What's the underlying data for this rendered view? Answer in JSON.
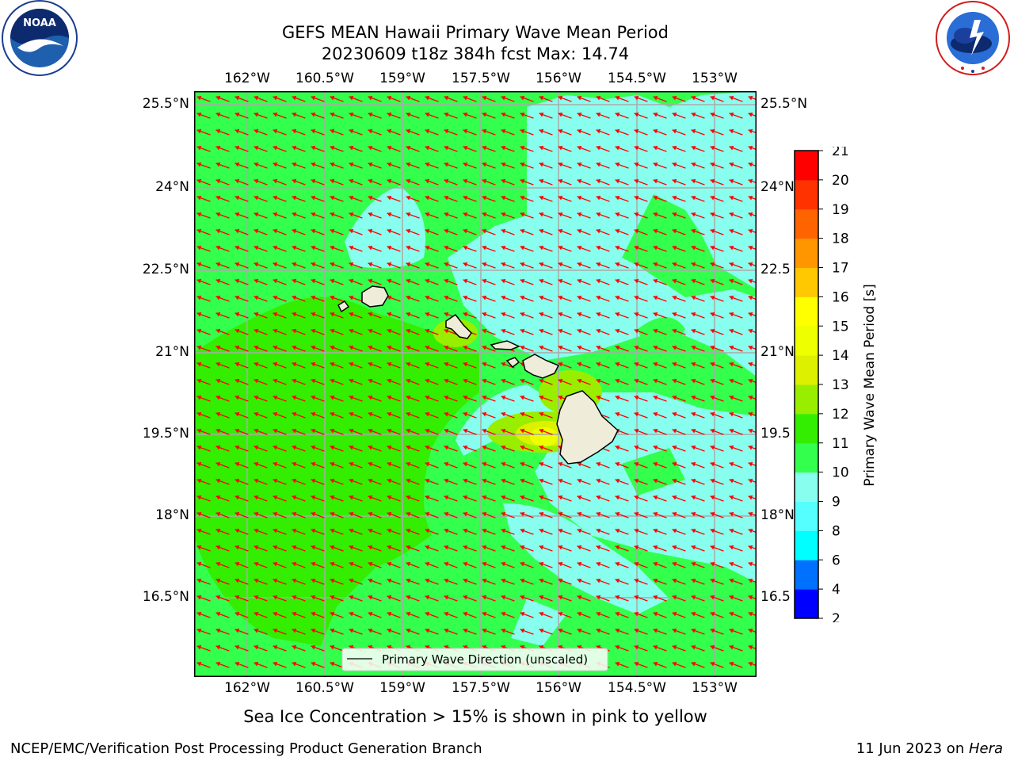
{
  "header": {
    "title_line1": "GEFS MEAN Hawaii Primary Wave Mean Period",
    "title_line2": "20230609 t18z 384h fcst   Max: 14.74"
  },
  "logos": {
    "left": "NOAA",
    "left_ring": "NATIONAL OCEANIC AND ATMOSPHERIC ADMINISTRATION · U.S. DEPARTMENT OF COMMERCE",
    "right_ring": "NATIONAL WEATHER SERVICE"
  },
  "map": {
    "lon_labels": [
      "162°W",
      "160.5°W",
      "159°W",
      "157.5°W",
      "156°W",
      "154.5°W",
      "153°W"
    ],
    "lat_labels_left": [
      "25.5°N",
      "24°N",
      "22.5°N",
      "21°N",
      "19.5°N",
      "18°N",
      "16.5°N"
    ],
    "lat_labels_right": [
      "25.5°N",
      "24°N",
      "22.5",
      "21°N",
      "19.5",
      "18°N",
      "16.5"
    ],
    "legend_label": "Primary Wave Direction (unscaled)",
    "field_colors": {
      "green_10_11": "#33ff4d",
      "green_11_12": "#33ee00",
      "cyan_9_10": "#88ffee",
      "lime_12_13": "#99ee00",
      "yellow_14_15": "#eeff00",
      "land": "#f0ecda",
      "arrow": "#ff0000",
      "grid": "#aaaaaa"
    }
  },
  "colorbar": {
    "label": "Primary Wave Mean Period [s]",
    "ticks": [
      "2",
      "4",
      "6",
      "8",
      "9",
      "10",
      "11",
      "12",
      "13",
      "14",
      "15",
      "16",
      "17",
      "18",
      "19",
      "20",
      "21"
    ],
    "colors": [
      "#0000ff",
      "#0070ff",
      "#00ffff",
      "#55ffff",
      "#88ffee",
      "#33ff4d",
      "#33ee00",
      "#99ee00",
      "#ddf000",
      "#eeff00",
      "#ffff00",
      "#ffc800",
      "#ff9600",
      "#ff6400",
      "#ff3200",
      "#ff0000"
    ]
  },
  "note": "Sea Ice Concentration > 15% is shown in pink to yellow",
  "footer": {
    "left": "NCEP/EMC/Verification Post Processing Product Generation Branch",
    "right_prefix": "11 Jun 2023 on ",
    "right_host": "Hera"
  }
}
